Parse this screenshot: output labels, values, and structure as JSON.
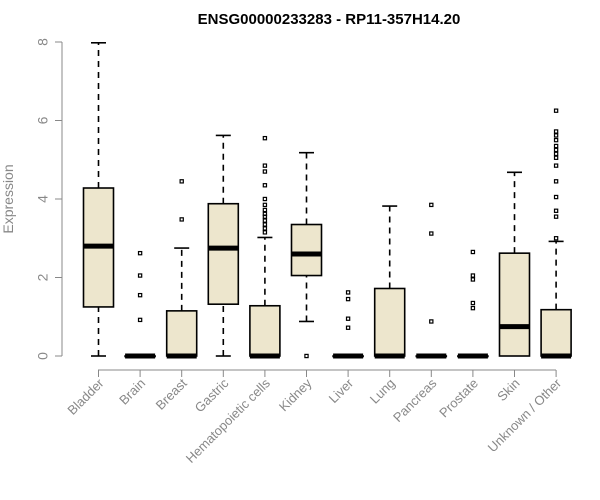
{
  "chart_data": {
    "type": "boxplot",
    "title": "ENSG00000233283 - RP11-357H14.20",
    "xlabel": "",
    "ylabel": "Expression",
    "ylim": [
      0,
      8
    ],
    "yticks": [
      0,
      2,
      4,
      6,
      8
    ],
    "grid": false,
    "colors": {
      "box_fill": "#ede6cd",
      "stroke": "#000000",
      "axis": "#888888"
    },
    "categories": [
      "Bladder",
      "Brain",
      "Breast",
      "Gastric",
      "Hematopoietic cells",
      "Kidney",
      "Liver",
      "Lung",
      "Pancreas",
      "Prostate",
      "Skin",
      "Unknown / Other"
    ],
    "boxes": [
      {
        "q1": 1.25,
        "median": 2.8,
        "q3": 4.28,
        "whisker_low": 0,
        "whisker_high": 7.98,
        "outliers": []
      },
      {
        "q1": 0,
        "median": 0,
        "q3": 0,
        "whisker_low": 0,
        "whisker_high": 0,
        "outliers": [
          0.92,
          1.55,
          2.05,
          2.62
        ]
      },
      {
        "q1": 0,
        "median": 0,
        "q3": 1.15,
        "whisker_low": 0,
        "whisker_high": 2.75,
        "outliers": [
          3.48,
          4.45
        ]
      },
      {
        "q1": 1.32,
        "median": 2.75,
        "q3": 3.88,
        "whisker_low": 0,
        "whisker_high": 5.62,
        "outliers": []
      },
      {
        "q1": 0,
        "median": 0,
        "q3": 1.28,
        "whisker_low": 0,
        "whisker_high": 3.02,
        "outliers": [
          3.15,
          3.25,
          3.35,
          3.45,
          3.55,
          3.62,
          3.72,
          3.85,
          4.0,
          4.35,
          4.7,
          4.85,
          5.55
        ]
      },
      {
        "q1": 2.05,
        "median": 2.6,
        "q3": 3.35,
        "whisker_low": 0.88,
        "whisker_high": 5.18,
        "outliers": [
          0
        ]
      },
      {
        "q1": 0,
        "median": 0,
        "q3": 0,
        "whisker_low": 0,
        "whisker_high": 0,
        "outliers": [
          0.72,
          0.95,
          1.45,
          1.62
        ]
      },
      {
        "q1": 0,
        "median": 0,
        "q3": 1.72,
        "whisker_low": 0,
        "whisker_high": 3.82,
        "outliers": []
      },
      {
        "q1": 0,
        "median": 0,
        "q3": 0,
        "whisker_low": 0,
        "whisker_high": 0,
        "outliers": [
          0.88,
          3.12,
          3.85
        ]
      },
      {
        "q1": 0,
        "median": 0,
        "q3": 0,
        "whisker_low": 0,
        "whisker_high": 0,
        "outliers": [
          1.22,
          1.35,
          1.95,
          2.05,
          2.65
        ]
      },
      {
        "q1": 0,
        "median": 0.75,
        "q3": 2.62,
        "whisker_low": 0,
        "whisker_high": 4.68,
        "outliers": []
      },
      {
        "q1": 0,
        "median": 0,
        "q3": 1.18,
        "whisker_low": 0,
        "whisker_high": 2.92,
        "outliers": [
          3.0,
          3.55,
          3.7,
          4.05,
          4.45,
          4.85,
          5.05,
          5.15,
          5.25,
          5.35,
          5.5,
          5.62,
          5.72,
          6.25
        ]
      }
    ]
  }
}
